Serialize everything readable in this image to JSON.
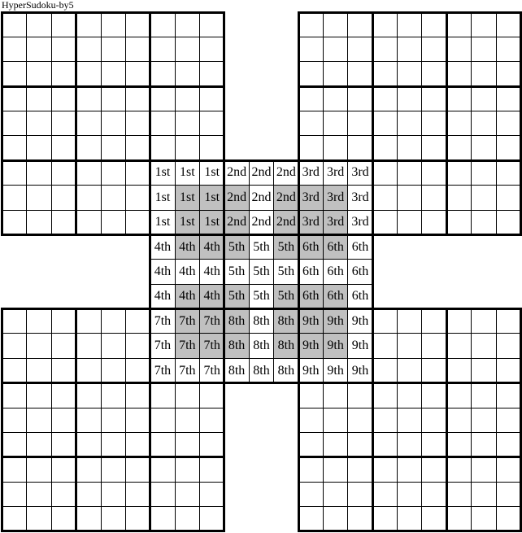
{
  "title": "HyperSudoku-by5",
  "colors": {
    "line": "#000000",
    "text": "#000000",
    "cell": "#ffffff",
    "shaded": "#c0c0c0",
    "background": "#ffffff"
  },
  "grids": {
    "names": [
      "top-left",
      "top-right",
      "bottom-left",
      "bottom-right",
      "center"
    ]
  },
  "center_grid": {
    "labels": [
      [
        "1st",
        "1st",
        "1st",
        "2nd",
        "2nd",
        "2nd",
        "3rd",
        "3rd",
        "3rd"
      ],
      [
        "1st",
        "1st",
        "1st",
        "2nd",
        "2nd",
        "2nd",
        "3rd",
        "3rd",
        "3rd"
      ],
      [
        "1st",
        "1st",
        "1st",
        "2nd",
        "2nd",
        "2nd",
        "3rd",
        "3rd",
        "3rd"
      ],
      [
        "4th",
        "4th",
        "4th",
        "5th",
        "5th",
        "5th",
        "6th",
        "6th",
        "6th"
      ],
      [
        "4th",
        "4th",
        "4th",
        "5th",
        "5th",
        "5th",
        "6th",
        "6th",
        "6th"
      ],
      [
        "4th",
        "4th",
        "4th",
        "5th",
        "5th",
        "5th",
        "6th",
        "6th",
        "6th"
      ],
      [
        "7th",
        "7th",
        "7th",
        "8th",
        "8th",
        "8th",
        "9th",
        "9th",
        "9th"
      ],
      [
        "7th",
        "7th",
        "7th",
        "8th",
        "8th",
        "8th",
        "9th",
        "9th",
        "9th"
      ],
      [
        "7th",
        "7th",
        "7th",
        "8th",
        "8th",
        "8th",
        "9th",
        "9th",
        "9th"
      ]
    ],
    "shaded": [
      [
        0,
        0,
        0,
        0,
        0,
        0,
        0,
        0,
        0
      ],
      [
        0,
        1,
        1,
        1,
        0,
        1,
        1,
        1,
        0
      ],
      [
        0,
        1,
        1,
        1,
        0,
        1,
        1,
        1,
        0
      ],
      [
        0,
        1,
        1,
        1,
        0,
        1,
        1,
        1,
        0
      ],
      [
        0,
        0,
        0,
        0,
        0,
        0,
        0,
        0,
        0
      ],
      [
        0,
        1,
        1,
        1,
        0,
        1,
        1,
        1,
        0
      ],
      [
        0,
        1,
        1,
        1,
        0,
        1,
        1,
        1,
        0
      ],
      [
        0,
        1,
        1,
        1,
        0,
        1,
        1,
        1,
        0
      ],
      [
        0,
        0,
        0,
        0,
        0,
        0,
        0,
        0,
        0
      ]
    ]
  }
}
